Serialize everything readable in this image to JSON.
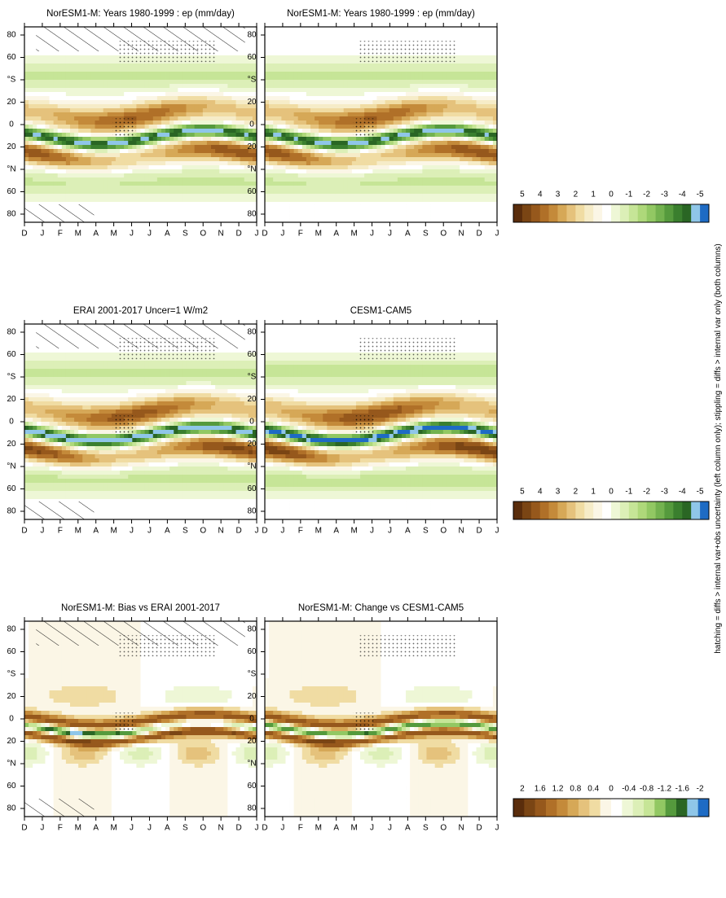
{
  "figure": {
    "footer": "hatching = diffs > internal var+obs uncertainty (left column only); stippling = diffs > internal var only (both columns)"
  },
  "colors": {
    "field_scale": [
      "#5a2d0c",
      "#7a4514",
      "#96581c",
      "#b07028",
      "#c48a3a",
      "#d6a857",
      "#e5c27c",
      "#f0dca3",
      "#f6ecc8",
      "#fbf6e6",
      "#ffffff",
      "#eef7d6",
      "#dcefb7",
      "#c6e597",
      "#aed87a",
      "#92c863",
      "#73b24f",
      "#559a3d",
      "#3a7f2e",
      "#2a6624",
      "#8fc6e8",
      "#1e6bc4"
    ],
    "diff_scale": [
      "#5a2d0c",
      "#7a4514",
      "#96581c",
      "#b07028",
      "#c48a3a",
      "#d6a857",
      "#e5c27c",
      "#f0dca3",
      "#fbf6e6",
      "#ffffff",
      "#eef7d6",
      "#dcefb7",
      "#c6e597",
      "#92c863",
      "#559a3d",
      "#2a6624",
      "#8fc6e8",
      "#1e6bc4"
    ]
  },
  "chart_data": [
    {
      "type": "heatmap",
      "title": "NorESM1-M: Years 1980-1999 : ep (mm/day)",
      "variable": "ep",
      "units": "mm/day",
      "x_ticks": [
        "D",
        "J",
        "F",
        "M",
        "A",
        "M",
        "J",
        "J",
        "A",
        "S",
        "O",
        "N",
        "D",
        "J"
      ],
      "y_ticks": [
        "80",
        "60",
        "°N",
        "20",
        "0",
        "20",
        "°S",
        "60",
        "80"
      ],
      "ylim": [
        -90,
        90
      ],
      "colorbar_ticks": [
        "5",
        "4",
        "3",
        "2",
        "1",
        "0",
        "-1",
        "-2",
        "-3",
        "-4",
        "-5"
      ],
      "colorbar_range": [
        5,
        -5
      ],
      "hatching": true,
      "stippling": true
    },
    {
      "type": "heatmap",
      "title": "NorESM1-M: Years 1980-1999 : ep (mm/day)",
      "variable": "ep",
      "units": "mm/day",
      "x_ticks": [
        "D",
        "J",
        "F",
        "M",
        "A",
        "M",
        "J",
        "J",
        "A",
        "S",
        "O",
        "N",
        "D",
        "J"
      ],
      "y_ticks": [
        "80",
        "60",
        "°N",
        "20",
        "0",
        "20",
        "°S",
        "60",
        "80"
      ],
      "ylim": [
        -90,
        90
      ],
      "colorbar_ticks": [
        "5",
        "4",
        "3",
        "2",
        "1",
        "0",
        "-1",
        "-2",
        "-3",
        "-4",
        "-5"
      ],
      "colorbar_range": [
        5,
        -5
      ],
      "hatching": false,
      "stippling": true
    },
    {
      "type": "heatmap",
      "title": "ERAI 2001-2017 Uncer=1 W/m2",
      "variable": "ep",
      "x_ticks": [
        "D",
        "J",
        "F",
        "M",
        "A",
        "M",
        "J",
        "J",
        "A",
        "S",
        "O",
        "N",
        "D",
        "J"
      ],
      "y_ticks": [
        "80",
        "60",
        "°N",
        "20",
        "0",
        "20",
        "°S",
        "60",
        "80"
      ],
      "ylim": [
        -90,
        90
      ],
      "colorbar_ticks": [
        "5",
        "4",
        "3",
        "2",
        "1",
        "0",
        "-1",
        "-2",
        "-3",
        "-4",
        "-5"
      ],
      "colorbar_range": [
        5,
        -5
      ],
      "hatching": true,
      "stippling": true
    },
    {
      "type": "heatmap",
      "title": "CESM1-CAM5",
      "variable": "ep",
      "x_ticks": [
        "D",
        "J",
        "F",
        "M",
        "A",
        "M",
        "J",
        "J",
        "A",
        "S",
        "O",
        "N",
        "D",
        "J"
      ],
      "y_ticks": [
        "80",
        "60",
        "°N",
        "20",
        "0",
        "20",
        "°S",
        "60",
        "80"
      ],
      "ylim": [
        -90,
        90
      ],
      "colorbar_ticks": [
        "5",
        "4",
        "3",
        "2",
        "1",
        "0",
        "-1",
        "-2",
        "-3",
        "-4",
        "-5"
      ],
      "colorbar_range": [
        5,
        -5
      ],
      "hatching": false,
      "stippling": true
    },
    {
      "type": "heatmap",
      "title": "NorESM1-M: Bias vs ERAI 2001-2017",
      "variable": "ep",
      "x_ticks": [
        "D",
        "J",
        "F",
        "M",
        "A",
        "M",
        "J",
        "J",
        "A",
        "S",
        "O",
        "N",
        "D",
        "J"
      ],
      "y_ticks": [
        "80",
        "60",
        "°N",
        "20",
        "0",
        "20",
        "°S",
        "60",
        "80"
      ],
      "ylim": [
        -90,
        90
      ],
      "colorbar_ticks": [
        "2",
        "1.6",
        "1.2",
        "0.8",
        "0.4",
        "0",
        "-0.4",
        "-0.8",
        "-1.2",
        "-1.6",
        "-2"
      ],
      "colorbar_range": [
        2,
        -2
      ],
      "hatching": true,
      "stippling": true
    },
    {
      "type": "heatmap",
      "title": "NorESM1-M: Change vs CESM1-CAM5",
      "variable": "ep",
      "x_ticks": [
        "D",
        "J",
        "F",
        "M",
        "A",
        "M",
        "J",
        "J",
        "A",
        "S",
        "O",
        "N",
        "D",
        "J"
      ],
      "y_ticks": [
        "80",
        "60",
        "°N",
        "20",
        "0",
        "20",
        "°S",
        "60",
        "80"
      ],
      "ylim": [
        -90,
        90
      ],
      "colorbar_ticks": [
        "2",
        "1.6",
        "1.2",
        "0.8",
        "0.4",
        "0",
        "-0.4",
        "-0.8",
        "-1.2",
        "-1.6",
        "-2"
      ],
      "colorbar_range": [
        -2,
        2
      ],
      "hatching": false,
      "stippling": true
    }
  ]
}
